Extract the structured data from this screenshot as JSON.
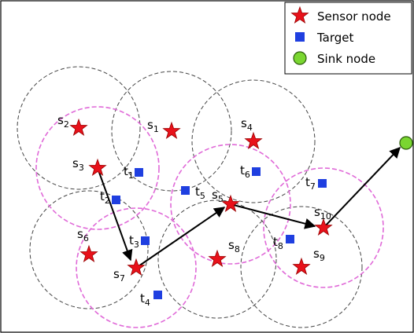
{
  "legend": {
    "sensor": "Sensor node",
    "target": "Target",
    "sink": "Sink node"
  },
  "colors": {
    "sensor": "#e8111a",
    "target": "#1f3fe0",
    "sink": "#7ad631",
    "sensing_range": "#444444",
    "selected_range": "#e06ad8"
  },
  "sensors": [
    {
      "id": "s1",
      "base": "s",
      "sub": "1"
    },
    {
      "id": "s2",
      "base": "s",
      "sub": "2"
    },
    {
      "id": "s3",
      "base": "s",
      "sub": "3"
    },
    {
      "id": "s4",
      "base": "s",
      "sub": "4"
    },
    {
      "id": "s5",
      "base": "s",
      "sub": "5"
    },
    {
      "id": "s6",
      "base": "s",
      "sub": "6"
    },
    {
      "id": "s7",
      "base": "s",
      "sub": "7"
    },
    {
      "id": "s8",
      "base": "s",
      "sub": "8"
    },
    {
      "id": "s9",
      "base": "s",
      "sub": "9"
    },
    {
      "id": "s10",
      "base": "s",
      "sub": "10"
    }
  ],
  "targets": [
    {
      "id": "t1",
      "base": "t",
      "sub": "1"
    },
    {
      "id": "t2",
      "base": "t",
      "sub": "2"
    },
    {
      "id": "t3",
      "base": "t",
      "sub": "3"
    },
    {
      "id": "t4",
      "base": "t",
      "sub": "4"
    },
    {
      "id": "t5",
      "base": "t",
      "sub": "5"
    },
    {
      "id": "t6",
      "base": "t",
      "sub": "6"
    },
    {
      "id": "t7",
      "base": "t",
      "sub": "7"
    },
    {
      "id": "t8",
      "base": "t",
      "sub": "8"
    }
  ],
  "path": [
    "s3",
    "s7",
    "s5",
    "s10",
    "sink"
  ]
}
